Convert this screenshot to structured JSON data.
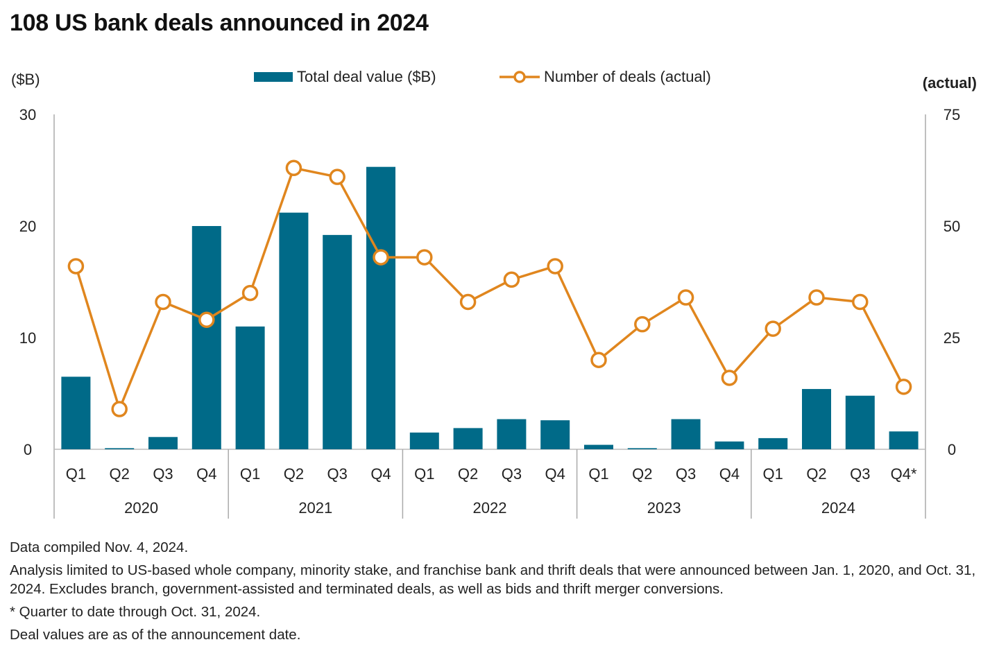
{
  "chart_data": {
    "type": "bar+line",
    "title": "108 US bank deals announced in 2024",
    "left_axis_label": "($B)",
    "right_axis_label": "(actual)",
    "left_ylim": [
      0,
      30
    ],
    "right_ylim": [
      0,
      75
    ],
    "left_ticks": [
      "0",
      "10",
      "20",
      "30"
    ],
    "right_ticks": [
      "0",
      "25",
      "50",
      "75"
    ],
    "grid": false,
    "legend_placement": "top-center",
    "colors": {
      "bar": "#006a88",
      "line": "#e0861e"
    },
    "years": [
      "2020",
      "2021",
      "2022",
      "2023",
      "2024"
    ],
    "categories": [
      "Q1",
      "Q2",
      "Q3",
      "Q4",
      "Q1",
      "Q2",
      "Q3",
      "Q4",
      "Q1",
      "Q2",
      "Q3",
      "Q4",
      "Q1",
      "Q2",
      "Q3",
      "Q4",
      "Q1",
      "Q2",
      "Q3",
      "Q4*"
    ],
    "series": [
      {
        "name": "Total deal value ($B)",
        "type": "bar",
        "axis": "left",
        "values": [
          6.5,
          0.1,
          1.1,
          20.0,
          11.0,
          21.2,
          19.2,
          25.3,
          1.5,
          1.9,
          2.7,
          2.6,
          0.4,
          0.1,
          2.7,
          0.7,
          1.0,
          5.4,
          4.8,
          1.6
        ]
      },
      {
        "name": "Number of deals (actual)",
        "type": "line",
        "axis": "right",
        "values": [
          41,
          9,
          33,
          29,
          35,
          63,
          61,
          43,
          43,
          33,
          38,
          41,
          20,
          28,
          34,
          16,
          27,
          34,
          33,
          14
        ]
      }
    ]
  },
  "notes": [
    "Data compiled Nov. 4, 2024.",
    "Analysis limited to US-based whole company, minority stake, and franchise bank and thrift deals that were announced between Jan. 1, 2020, and Oct. 31, 2024. Excludes branch, government-assisted and terminated deals, as well as bids and thrift merger conversions.",
    "* Quarter to date through Oct. 31, 2024.",
    "Deal values are as of the announcement date."
  ]
}
